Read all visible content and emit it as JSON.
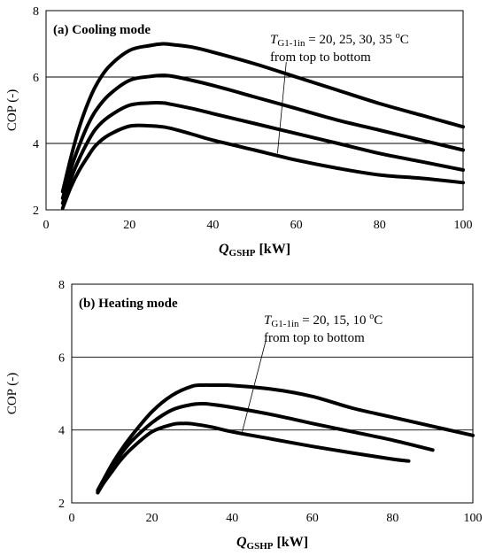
{
  "chart_data": [
    {
      "type": "line",
      "title": "(a) Cooling mode",
      "xlabel_main": "Q",
      "xlabel_sub": "GSHP",
      "xlabel_unit": " [kW]",
      "ylabel": "COP (-)",
      "xlim": [
        0,
        100
      ],
      "ylim": [
        2,
        8
      ],
      "xticks": [
        0,
        20,
        40,
        60,
        80,
        100
      ],
      "yticks": [
        2,
        4,
        6,
        8
      ],
      "grid_y": [
        4,
        6
      ],
      "annotation": {
        "var": "T",
        "sub": "G1-1in",
        "value_text": " = 20, 25, 30, 35 ",
        "unit_sup": "o",
        "unit": "C",
        "line2": "from top to bottom"
      },
      "leader": {
        "from": [
          57.6,
          6.45
        ],
        "to": [
          55.5,
          3.7
        ]
      },
      "series": [
        {
          "x": [
            4,
            6,
            8,
            10,
            12,
            15,
            20,
            25,
            28,
            30,
            35,
            40,
            50,
            60,
            70,
            80,
            90,
            100
          ],
          "y": [
            2.55,
            3.6,
            4.5,
            5.2,
            5.75,
            6.3,
            6.8,
            6.95,
            7.0,
            6.98,
            6.9,
            6.75,
            6.4,
            6.0,
            5.6,
            5.2,
            4.85,
            4.5
          ]
        },
        {
          "x": [
            4,
            6,
            8,
            10,
            12,
            15,
            20,
            25,
            28,
            30,
            35,
            40,
            50,
            60,
            70,
            80,
            90,
            100
          ],
          "y": [
            2.35,
            3.25,
            3.95,
            4.55,
            5.0,
            5.45,
            5.9,
            6.02,
            6.05,
            6.03,
            5.9,
            5.75,
            5.4,
            5.05,
            4.7,
            4.4,
            4.1,
            3.8
          ]
        },
        {
          "x": [
            4,
            6,
            8,
            10,
            12,
            15,
            20,
            25,
            28,
            30,
            35,
            40,
            50,
            60,
            70,
            80,
            90,
            100
          ],
          "y": [
            2.2,
            2.95,
            3.55,
            4.05,
            4.45,
            4.8,
            5.15,
            5.22,
            5.22,
            5.18,
            5.05,
            4.9,
            4.6,
            4.3,
            4.0,
            3.7,
            3.45,
            3.2
          ]
        },
        {
          "x": [
            4,
            6,
            8,
            10,
            12,
            15,
            20,
            25,
            28,
            30,
            35,
            40,
            50,
            60,
            70,
            80,
            90,
            100
          ],
          "y": [
            2.05,
            2.7,
            3.2,
            3.6,
            3.95,
            4.25,
            4.52,
            4.53,
            4.5,
            4.45,
            4.28,
            4.1,
            3.8,
            3.5,
            3.25,
            3.05,
            2.95,
            2.82
          ]
        }
      ]
    },
    {
      "type": "line",
      "title": "(b) Heating mode",
      "xlabel_main": "Q",
      "xlabel_sub": "GSHP",
      "xlabel_unit": " [kW]",
      "ylabel": "COP (-)",
      "xlim": [
        0,
        100
      ],
      "ylim": [
        2,
        8
      ],
      "xticks": [
        0,
        20,
        40,
        60,
        80,
        100
      ],
      "yticks": [
        2,
        4,
        6,
        8
      ],
      "grid_y": [
        4,
        6
      ],
      "annotation": {
        "var": "T",
        "sub": "G1-1in",
        "value_text": " = 20, 15, 10 ",
        "unit_sup": "o",
        "unit": "C",
        "line2": "from top to bottom"
      },
      "leader": {
        "from": [
          48.5,
          6.5
        ],
        "to": [
          42.5,
          3.95
        ]
      },
      "series": [
        {
          "x": [
            6.5,
            8,
            10,
            12,
            15,
            20,
            25,
            30,
            33,
            35,
            40,
            50,
            60,
            70,
            80,
            90,
            100
          ],
          "y": [
            2.35,
            2.65,
            3.05,
            3.4,
            3.85,
            4.5,
            4.95,
            5.2,
            5.23,
            5.23,
            5.22,
            5.12,
            4.92,
            4.6,
            4.35,
            4.1,
            3.85
          ]
        },
        {
          "x": [
            6.5,
            8,
            10,
            12,
            15,
            20,
            25,
            30,
            33,
            35,
            40,
            50,
            60,
            70,
            80,
            90
          ],
          "y": [
            2.32,
            2.6,
            2.95,
            3.3,
            3.7,
            4.2,
            4.55,
            4.7,
            4.72,
            4.7,
            4.62,
            4.42,
            4.18,
            3.95,
            3.72,
            3.45
          ]
        },
        {
          "x": [
            6.5,
            8,
            10,
            12,
            15,
            20,
            25,
            28,
            30,
            35,
            40,
            50,
            60,
            70,
            80,
            84
          ],
          "y": [
            2.28,
            2.55,
            2.85,
            3.15,
            3.5,
            3.95,
            4.15,
            4.18,
            4.17,
            4.08,
            3.95,
            3.75,
            3.55,
            3.37,
            3.2,
            3.15
          ]
        }
      ]
    }
  ]
}
